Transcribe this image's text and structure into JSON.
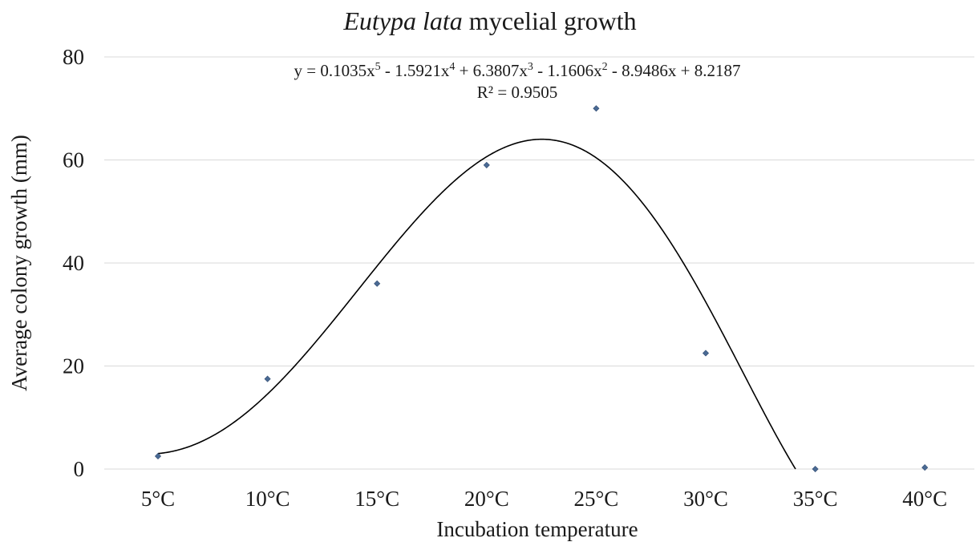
{
  "chart_data": {
    "type": "scatter",
    "title_italic": "Eutypa lata",
    "title_rest": " mycelial growth",
    "xlabel": "Incubation temperature",
    "ylabel": "Average colony growth (mm)",
    "categories": [
      "5°C",
      "10°C",
      "15°C",
      "20°C",
      "25°C",
      "30°C",
      "35°C",
      "40°C"
    ],
    "x": [
      1,
      2,
      3,
      4,
      5,
      6,
      7,
      8
    ],
    "values": [
      2.5,
      17.5,
      36,
      59,
      70,
      22.5,
      0,
      0.3
    ],
    "ylim": [
      0,
      80
    ],
    "yticks": [
      0,
      20,
      40,
      60,
      80
    ],
    "grid": true,
    "legend": "none",
    "marker_color": "#4a6a94",
    "trendline": {
      "type": "polynomial",
      "order": 5,
      "coefficients": [
        0.1035,
        -1.5921,
        6.3807,
        -1.1606,
        -8.9486,
        8.2187
      ],
      "equation_parts": [
        "y = 0.1035x",
        "5",
        " - 1.5921x",
        "4",
        " + 6.3807x",
        "3",
        " - 1.1606x",
        "2",
        " - 8.9486x + 8.2187"
      ],
      "r_squared_text": "R² = 0.9505",
      "color": "#000000"
    }
  }
}
